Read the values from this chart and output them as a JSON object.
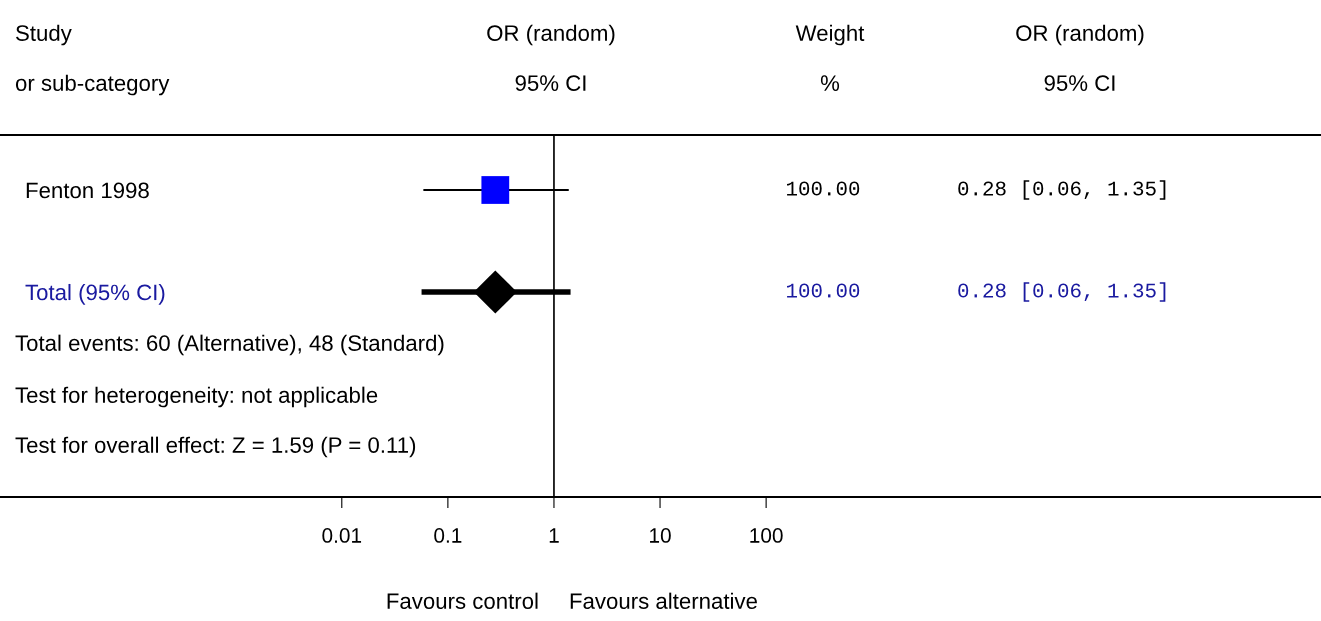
{
  "chart_data": {
    "type": "scatter",
    "orientation": "horizontal",
    "log": "x",
    "categories": [
      "Fenton 1998",
      "Total (95% CI)"
    ],
    "series": [
      {
        "type": "scatter",
        "marker": "square",
        "color": "#0000ff",
        "values": [
          0.28,
          null
        ],
        "errors": [
          [
            0.06,
            1.35
          ],
          null
        ]
      },
      {
        "type": "scatter",
        "marker": "diamond",
        "color": "#000000",
        "values": [
          null,
          0.28
        ],
        "errors": [
          null,
          [
            0.06,
            1.35
          ]
        ]
      }
    ],
    "xlim": [
      6e-06,
      17000000
    ],
    "xticks": [
      0.01,
      0.1,
      1,
      10,
      100
    ],
    "ref_lines": [
      {
        "axis": "x",
        "value": 1,
        "color": "#000000"
      }
    ],
    "annotations": [
      "Study",
      "or sub-category",
      "OR (random)",
      "95% CI",
      "Weight",
      "%",
      "OR (random)",
      "95% CI",
      "100.00",
      "100.00",
      "Total events: 60 (Alternative), 48 (Standard)",
      "Test for heterogeneity: not applicable",
      "Test for overall effect: Z = 1.59 (P = 0.11)",
      "Favours control",
      "Favours alternative",
      "0.28 [0.06, 1.35]",
      "0.28 [0.06, 1.35]"
    ]
  }
}
